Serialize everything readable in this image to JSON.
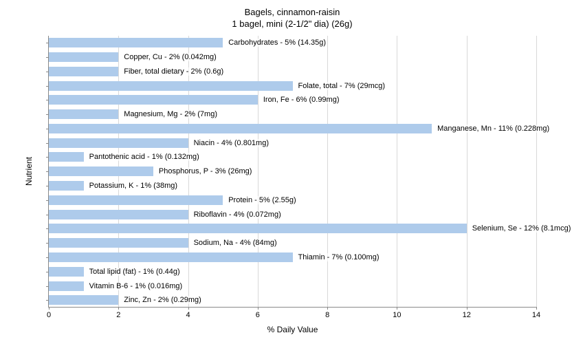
{
  "chart": {
    "type": "bar-horizontal",
    "title_line1": "Bagels, cinnamon-raisin",
    "title_line2": "1 bagel, mini (2-1/2\" dia) (26g)",
    "title_fontsize": 13,
    "xlabel": "% Daily Value",
    "ylabel": "Nutrient",
    "label_fontsize": 12,
    "xlim": [
      0,
      14
    ],
    "xtick_step": 2,
    "xticks": [
      0,
      2,
      4,
      6,
      8,
      10,
      12,
      14
    ],
    "background_color": "#ffffff",
    "grid_color": "#d8d8d8",
    "axis_color": "#888888",
    "bar_color": "#aecbeb",
    "bar_label_fontsize": 11,
    "tick_fontsize": 11,
    "bars": [
      {
        "label": "Carbohydrates - 5% (14.35g)",
        "value": 5
      },
      {
        "label": "Copper, Cu - 2% (0.042mg)",
        "value": 2
      },
      {
        "label": "Fiber, total dietary - 2% (0.6g)",
        "value": 2
      },
      {
        "label": "Folate, total - 7% (29mcg)",
        "value": 7
      },
      {
        "label": "Iron, Fe - 6% (0.99mg)",
        "value": 6
      },
      {
        "label": "Magnesium, Mg - 2% (7mg)",
        "value": 2
      },
      {
        "label": "Manganese, Mn - 11% (0.228mg)",
        "value": 11
      },
      {
        "label": "Niacin - 4% (0.801mg)",
        "value": 4
      },
      {
        "label": "Pantothenic acid - 1% (0.132mg)",
        "value": 1
      },
      {
        "label": "Phosphorus, P - 3% (26mg)",
        "value": 3
      },
      {
        "label": "Potassium, K - 1% (38mg)",
        "value": 1
      },
      {
        "label": "Protein - 5% (2.55g)",
        "value": 5
      },
      {
        "label": "Riboflavin - 4% (0.072mg)",
        "value": 4
      },
      {
        "label": "Selenium, Se - 12% (8.1mcg)",
        "value": 12
      },
      {
        "label": "Sodium, Na - 4% (84mg)",
        "value": 4
      },
      {
        "label": "Thiamin - 7% (0.100mg)",
        "value": 7
      },
      {
        "label": "Total lipid (fat) - 1% (0.44g)",
        "value": 1
      },
      {
        "label": "Vitamin B-6 - 1% (0.016mg)",
        "value": 1
      },
      {
        "label": "Zinc, Zn - 2% (0.29mg)",
        "value": 2
      }
    ]
  }
}
